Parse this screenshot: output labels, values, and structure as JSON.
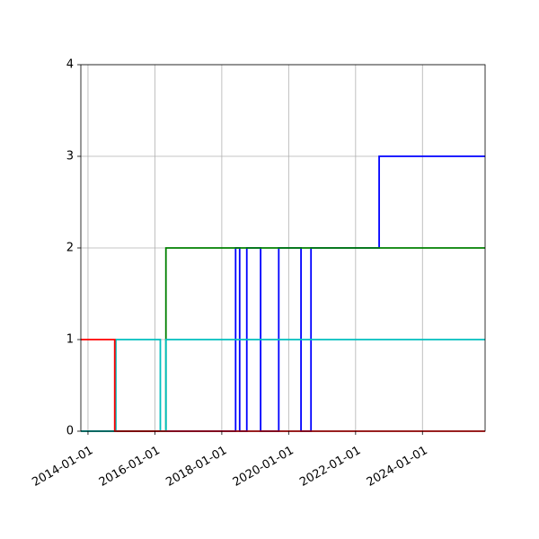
{
  "chart_data": {
    "type": "line",
    "title": "",
    "xlabel": "",
    "ylabel": "",
    "x_axis_type": "date",
    "xlim": [
      "2013-10-15",
      "2025-11-15"
    ],
    "ylim": [
      0,
      4
    ],
    "grid": true,
    "x_ticks": [
      "2014-01-01",
      "2016-01-01",
      "2018-01-01",
      "2020-01-01",
      "2022-01-01",
      "2024-01-01"
    ],
    "y_ticks": [
      0,
      1,
      2,
      3,
      4
    ],
    "series": [
      {
        "color": "#0000ff",
        "step": true,
        "points": [
          [
            "2013-10-15",
            0
          ],
          [
            "2018-06-01",
            0
          ],
          [
            "2018-06-01",
            2
          ],
          [
            "2018-07-15",
            2
          ],
          [
            "2018-07-15",
            0
          ],
          [
            "2018-10-01",
            0
          ],
          [
            "2018-10-01",
            2
          ],
          [
            "2019-03-01",
            2
          ],
          [
            "2019-03-01",
            0
          ],
          [
            "2019-09-15",
            0
          ],
          [
            "2019-09-15",
            2
          ],
          [
            "2020-05-15",
            2
          ],
          [
            "2020-05-15",
            0
          ],
          [
            "2020-09-01",
            0
          ],
          [
            "2020-09-01",
            2
          ],
          [
            "2022-09-15",
            2
          ],
          [
            "2022-09-15",
            3
          ],
          [
            "2025-11-15",
            3
          ]
        ]
      },
      {
        "color": "#008000",
        "step": true,
        "points": [
          [
            "2013-10-15",
            0
          ],
          [
            "2016-05-01",
            0
          ],
          [
            "2016-05-01",
            2
          ],
          [
            "2025-11-15",
            2
          ]
        ]
      },
      {
        "color": "#00bfbf",
        "step": true,
        "points": [
          [
            "2013-10-15",
            0
          ],
          [
            "2014-11-01",
            0
          ],
          [
            "2014-11-01",
            1
          ],
          [
            "2016-03-01",
            1
          ],
          [
            "2016-03-01",
            0
          ],
          [
            "2016-05-01",
            0
          ],
          [
            "2016-05-01",
            1
          ],
          [
            "2025-11-15",
            1
          ]
        ]
      },
      {
        "color": "#ff0000",
        "step": true,
        "points": [
          [
            "2013-10-15",
            1
          ],
          [
            "2014-10-20",
            1
          ],
          [
            "2014-10-20",
            0
          ],
          [
            "2025-11-15",
            0
          ]
        ]
      }
    ]
  }
}
